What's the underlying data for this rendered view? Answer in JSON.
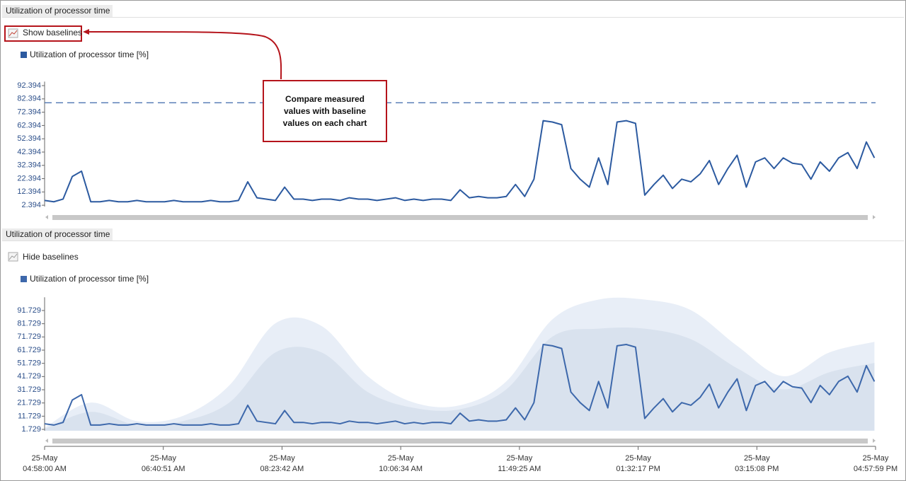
{
  "panels": [
    {
      "tab": "Utilization of processor time",
      "toggle": "Show baselines"
    },
    {
      "tab": "Utilization of processor time",
      "toggle": "Hide baselines"
    }
  ],
  "callout": "Compare measured values with baseline values on each chart",
  "chart_data": [
    {
      "type": "line",
      "x": [
        0,
        8,
        16,
        24,
        32,
        40,
        48,
        56,
        64,
        72,
        80,
        88,
        96,
        104,
        112,
        120,
        128,
        136,
        144,
        152,
        160,
        168,
        176,
        184,
        192,
        200,
        208,
        216,
        224,
        232,
        240,
        248,
        256,
        264,
        272,
        280,
        288,
        296,
        304,
        312,
        320,
        328,
        336,
        344,
        352,
        360,
        368,
        376,
        384,
        392,
        400,
        408,
        416,
        424,
        432,
        440,
        448,
        456,
        464,
        472,
        480,
        488,
        496,
        504,
        512,
        520,
        528,
        536,
        544,
        552,
        560,
        568,
        576,
        584,
        592,
        600,
        608,
        616,
        624,
        632,
        640,
        648,
        656,
        664,
        672,
        680,
        688,
        696,
        704,
        712,
        719
      ],
      "xlim": [
        0,
        719.98
      ],
      "series": [
        {
          "name": "Utilization of processor time [%]",
          "color": "#2c5aa0",
          "values": [
            6,
            5,
            7,
            24,
            28,
            5,
            5,
            6,
            5,
            5,
            6,
            5,
            5,
            5,
            6,
            5,
            5,
            5,
            6,
            5,
            5,
            6,
            20,
            8,
            7,
            6,
            16,
            7,
            7,
            6,
            7,
            7,
            6,
            8,
            7,
            7,
            6,
            7,
            8,
            6,
            7,
            6,
            7,
            7,
            6,
            14,
            8,
            9,
            8,
            8,
            9,
            18,
            9,
            22,
            66,
            65,
            63,
            30,
            22,
            16,
            38,
            18,
            65,
            66,
            64,
            10,
            18,
            25,
            15,
            22,
            20,
            26,
            36,
            18,
            30,
            40,
            16,
            35,
            38,
            30,
            38,
            34,
            33,
            22,
            35,
            28,
            38,
            42,
            30,
            50,
            38
          ]
        }
      ],
      "ylim": [
        1.394,
        95.394
      ],
      "yticks": [
        2.394,
        12.394,
        22.394,
        32.394,
        42.394,
        52.394,
        62.394,
        72.394,
        82.394,
        92.394
      ],
      "baseline": 79.5
    },
    {
      "type": "line",
      "x": [
        0,
        8,
        16,
        24,
        32,
        40,
        48,
        56,
        64,
        72,
        80,
        88,
        96,
        104,
        112,
        120,
        128,
        136,
        144,
        152,
        160,
        168,
        176,
        184,
        192,
        200,
        208,
        216,
        224,
        232,
        240,
        248,
        256,
        264,
        272,
        280,
        288,
        296,
        304,
        312,
        320,
        328,
        336,
        344,
        352,
        360,
        368,
        376,
        384,
        392,
        400,
        408,
        416,
        424,
        432,
        440,
        448,
        456,
        464,
        472,
        480,
        488,
        496,
        504,
        512,
        520,
        528,
        536,
        544,
        552,
        560,
        568,
        576,
        584,
        592,
        600,
        608,
        616,
        624,
        632,
        640,
        648,
        656,
        664,
        672,
        680,
        688,
        696,
        704,
        712,
        719
      ],
      "xlim": [
        0,
        719.98
      ],
      "series": [
        {
          "name": "Utilization of processor time [%]",
          "color": "#3d68ab",
          "values": [
            6,
            5,
            7,
            24,
            28,
            5,
            5,
            6,
            5,
            5,
            6,
            5,
            5,
            5,
            6,
            5,
            5,
            5,
            6,
            5,
            5,
            6,
            20,
            8,
            7,
            6,
            16,
            7,
            7,
            6,
            7,
            7,
            6,
            8,
            7,
            7,
            6,
            7,
            8,
            6,
            7,
            6,
            7,
            7,
            6,
            14,
            8,
            9,
            8,
            8,
            9,
            18,
            9,
            22,
            66,
            65,
            63,
            30,
            22,
            16,
            38,
            18,
            65,
            66,
            64,
            10,
            18,
            25,
            15,
            22,
            20,
            26,
            36,
            18,
            30,
            40,
            16,
            35,
            38,
            30,
            38,
            34,
            33,
            22,
            35,
            28,
            38,
            42,
            30,
            50,
            38
          ]
        }
      ],
      "ylim": [
        0.729,
        101.729
      ],
      "yticks": [
        1.729,
        11.729,
        21.729,
        31.729,
        41.729,
        51.729,
        61.729,
        71.729,
        81.729,
        91.729
      ],
      "xticks": [
        {
          "value": 0,
          "label": "04:58:00 AM"
        },
        {
          "value": 102.85,
          "label": "06:40:51 AM"
        },
        {
          "value": 205.71,
          "label": "08:23:42 AM"
        },
        {
          "value": 308.56,
          "label": "10:06:34 AM"
        },
        {
          "value": 411.42,
          "label": "11:49:25 AM"
        },
        {
          "value": 514.27,
          "label": "01:32:17 PM"
        },
        {
          "value": 617.13,
          "label": "03:15:08 PM"
        },
        {
          "value": 719.98,
          "label": "04:57:59 PM"
        }
      ],
      "xtick_dates": [
        "25-May",
        "25-May",
        "25-May",
        "25-May",
        "25-May",
        "25-May",
        "25-May",
        "25-May"
      ],
      "baseline_x": [
        0,
        40,
        80,
        120,
        160,
        200,
        240,
        280,
        320,
        360,
        400,
        440,
        480,
        520,
        560,
        600,
        640,
        680,
        719
      ],
      "baseline_bands": [
        {
          "color": "#e8eef7",
          "values": [
            3,
            22,
            8,
            12,
            35,
            82,
            80,
            42,
            22,
            20,
            38,
            85,
            100,
            100,
            92,
            65,
            42,
            60,
            68
          ]
        },
        {
          "color": "#d9e2ee",
          "values": [
            2,
            15,
            5,
            8,
            22,
            60,
            60,
            30,
            18,
            17,
            32,
            72,
            78,
            78,
            70,
            48,
            32,
            45,
            52
          ]
        }
      ]
    }
  ]
}
